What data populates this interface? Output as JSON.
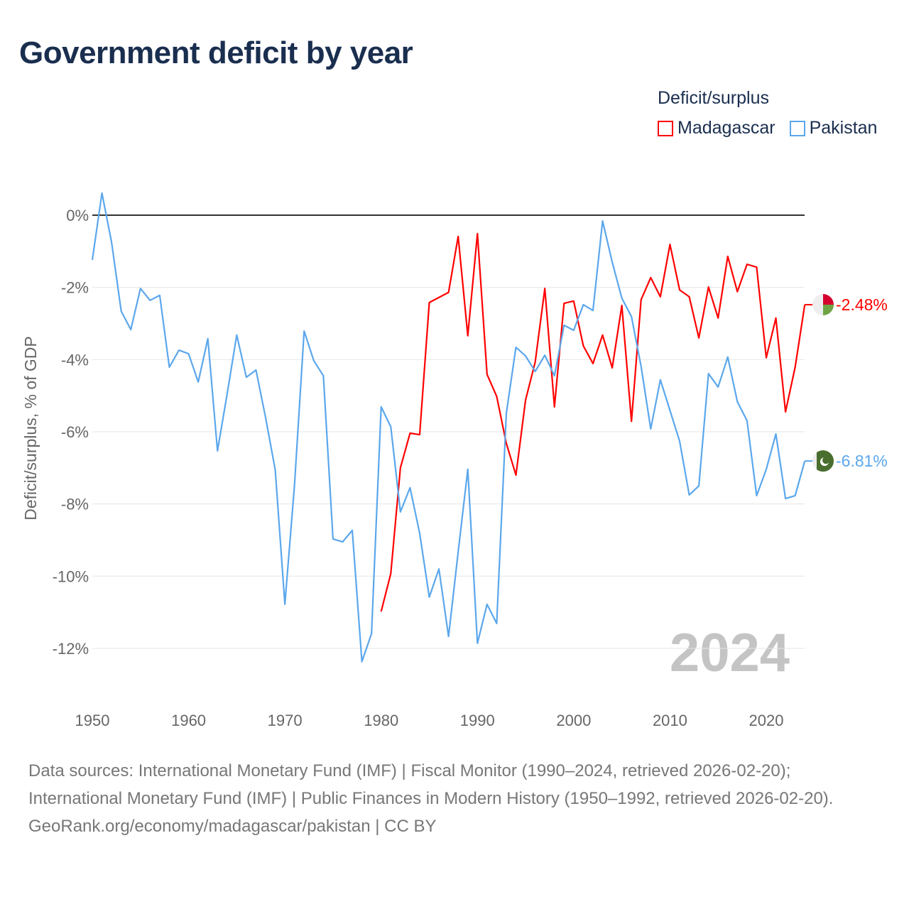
{
  "title": "Government deficit by year",
  "legend": {
    "title": "Deficit/surplus",
    "items": [
      {
        "label": "Madagascar",
        "color": "#ff0000"
      },
      {
        "label": "Pakistan",
        "color": "#5ba7ec"
      }
    ]
  },
  "year_watermark": "2024",
  "footer": {
    "sources": "Data sources: International Monetary Fund (IMF) | Fiscal Monitor (1990–2024, retrieved 2026-02-20); International Monetary Fund (IMF) | Public Finances in Modern History (1950–1992, retrieved 2026-02-20).",
    "credit": "GeoRank.org/economy/madagascar/pakistan | CC BY"
  },
  "chart_data": {
    "type": "line",
    "title": "Government deficit by year",
    "xlabel": "",
    "ylabel": "Deficit/surplus, % of GDP",
    "xlim": [
      1950,
      2024
    ],
    "ylim": [
      -13,
      0.6
    ],
    "x_ticks": [
      1950,
      1960,
      1970,
      1980,
      1990,
      2000,
      2010,
      2020
    ],
    "x_tick_labels": [
      "1950",
      "1960",
      "1970",
      "1980",
      "1990",
      "2000",
      "2010",
      "2020"
    ],
    "y_ticks": [
      0,
      -2,
      -4,
      -6,
      -8,
      -10,
      -12
    ],
    "y_tick_labels": [
      "0%",
      "-2%",
      "-4%",
      "-6%",
      "-8%",
      "-10%",
      "-12%"
    ],
    "grid": true,
    "legend_position": "top-right",
    "series": [
      {
        "name": "Madagascar",
        "color": "#ff0000",
        "start_year": 1980,
        "end_label": "-2.48%",
        "values": [
          -10.98,
          -9.93,
          -7.0,
          -6.04,
          -6.08,
          -2.42,
          -2.28,
          -2.14,
          -0.59,
          -3.34,
          -0.51,
          -4.41,
          -5.02,
          -6.32,
          -7.2,
          -5.12,
          -4.07,
          -2.03,
          -5.31,
          -2.44,
          -2.38,
          -3.62,
          -4.11,
          -3.32,
          -4.23,
          -2.5,
          -5.71,
          -2.34,
          -1.73,
          -2.26,
          -0.81,
          -2.07,
          -2.26,
          -3.4,
          -1.99,
          -2.85,
          -1.14,
          -2.12,
          -1.36,
          -1.44,
          -3.95,
          -2.85,
          -5.45,
          -4.21,
          -2.48
        ]
      },
      {
        "name": "Pakistan",
        "color": "#5ba7ec",
        "start_year": 1950,
        "end_label": "-6.81%",
        "values": [
          -1.24,
          0.61,
          -0.75,
          -2.66,
          -3.17,
          -2.03,
          -2.36,
          -2.22,
          -4.21,
          -3.74,
          -3.84,
          -4.62,
          -3.42,
          -6.53,
          -4.96,
          -3.32,
          -4.49,
          -4.29,
          -5.61,
          -7.06,
          -10.78,
          -7.48,
          -3.21,
          -4.03,
          -4.45,
          -8.97,
          -9.05,
          -8.73,
          -12.37,
          -11.59,
          -5.31,
          -5.86,
          -8.22,
          -7.55,
          -8.81,
          -10.58,
          -9.8,
          -11.67,
          -9.33,
          -7.04,
          -11.86,
          -10.78,
          -11.31,
          -5.49,
          -3.66,
          -3.9,
          -4.33,
          -3.88,
          -4.45,
          -3.05,
          -3.19,
          -2.48,
          -2.64,
          -0.16,
          -1.3,
          -2.3,
          -2.81,
          -4.19,
          -5.92,
          -4.56,
          -5.41,
          -6.26,
          -7.75,
          -7.5,
          -4.39,
          -4.76,
          -3.93,
          -5.17,
          -5.69,
          -7.77,
          -7.04,
          -6.06,
          -7.85,
          -7.77,
          -6.81
        ]
      }
    ]
  }
}
